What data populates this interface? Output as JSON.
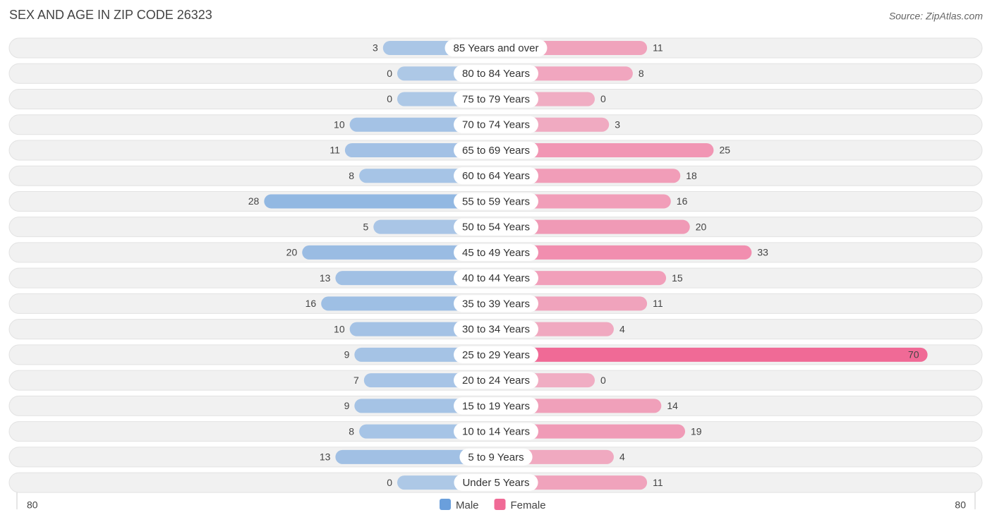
{
  "chart_data": {
    "type": "pyramid",
    "title": "SEX AND AGE IN ZIP CODE 26323",
    "source": "Source: ZipAtlas.com",
    "categories": [
      "85 Years and over",
      "80 to 84 Years",
      "75 to 79 Years",
      "70 to 74 Years",
      "65 to 69 Years",
      "60 to 64 Years",
      "55 to 59 Years",
      "50 to 54 Years",
      "45 to 49 Years",
      "40 to 44 Years",
      "35 to 39 Years",
      "30 to 34 Years",
      "25 to 29 Years",
      "20 to 24 Years",
      "15 to 19 Years",
      "10 to 14 Years",
      "5 to 9 Years",
      "Under 5 Years"
    ],
    "series": [
      {
        "name": "Male",
        "color": "#6a9fdc",
        "values": [
          3,
          0,
          0,
          10,
          11,
          8,
          28,
          5,
          20,
          13,
          16,
          10,
          9,
          7,
          9,
          8,
          13,
          0
        ]
      },
      {
        "name": "Female",
        "color": "#f06a96",
        "values": [
          11,
          8,
          0,
          3,
          25,
          18,
          16,
          20,
          33,
          15,
          11,
          4,
          70,
          0,
          14,
          19,
          4,
          11
        ]
      }
    ],
    "xlim": [
      -80,
      80
    ],
    "xticks": [
      {
        "value": -80,
        "label": "80"
      },
      80
    ]
  }
}
